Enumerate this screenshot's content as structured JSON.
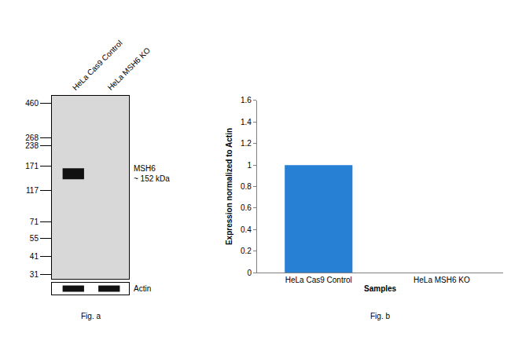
{
  "chart_data": {
    "type": "bar",
    "title": "Fig. b",
    "categories": [
      "HeLa Cas9 Control",
      "HeLa MSH6 KO"
    ],
    "values": [
      1,
      0
    ],
    "color": "#2780d4",
    "xlabel": "Samples",
    "ylabel": "Expression normalized to Actin",
    "ylim": [
      0,
      1.6
    ],
    "yticks": [
      0,
      0.2,
      0.4,
      0.6,
      0.8,
      1,
      1.2,
      1.4,
      1.6
    ],
    "grid": false
  },
  "blot": {
    "caption": "Fig. a",
    "lanes": [
      "HeLa Cas9 Control",
      "HeLa MSH6 KO"
    ],
    "ylim": [
      29,
      520
    ],
    "yticks": [
      460,
      268,
      238,
      171,
      117,
      71,
      55,
      41,
      31
    ],
    "band": {
      "label": "MSH6",
      "size_label": "~ 152 kDa",
      "kda": 152,
      "present": [
        true,
        false
      ]
    },
    "loading_control": {
      "label": "Actin",
      "present": [
        true,
        true
      ]
    }
  }
}
